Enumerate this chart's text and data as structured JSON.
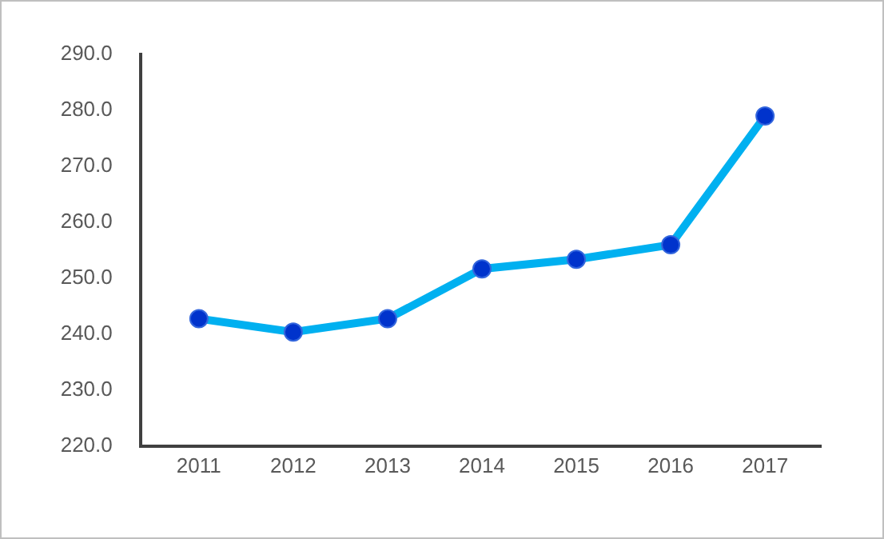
{
  "chart_data": {
    "type": "line",
    "categories": [
      "2011",
      "2012",
      "2013",
      "2014",
      "2015",
      "2016",
      "2017"
    ],
    "series": [
      {
        "color": "#00b0f0",
        "values": [
          242.5,
          240.1,
          242.5,
          251.4,
          253.1,
          255.7,
          278.7
        ]
      }
    ],
    "marker": "circle",
    "line_style": "solid",
    "grid": false,
    "ylim": [
      220,
      290
    ],
    "yticks": [
      {
        "value": 220,
        "label": "220.0"
      },
      {
        "value": 230,
        "label": "230.0"
      },
      {
        "value": 240,
        "label": "240.0"
      },
      {
        "value": 250,
        "label": "250.0"
      },
      {
        "value": 260,
        "label": "260.0"
      },
      {
        "value": 270,
        "label": "270.0"
      },
      {
        "value": 280,
        "label": "280.0"
      },
      {
        "value": 290,
        "label": "290.0"
      }
    ]
  }
}
